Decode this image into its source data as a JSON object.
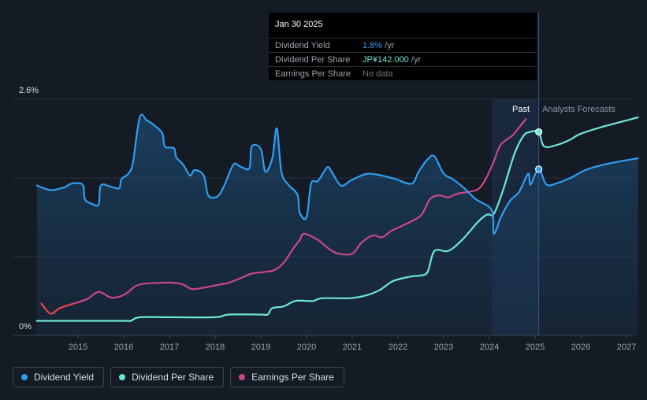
{
  "tooltip": {
    "date": "Jan 30 2025",
    "rows": [
      {
        "label": "Dividend Yield",
        "value": "1.8%",
        "unit": " /yr",
        "color": "#2f9ef0"
      },
      {
        "label": "Dividend Per Share",
        "value": "JP¥142.000",
        "unit": " /yr",
        "color": "#6ee7d4"
      },
      {
        "label": "Earnings Per Share",
        "value": "No data",
        "unit": "",
        "color": "#6b7280"
      }
    ]
  },
  "chart_data": {
    "type": "line",
    "y_max_label": "2.6%",
    "y_min_label": "0%",
    "x_ticks": [
      "2015",
      "2016",
      "2017",
      "2018",
      "2019",
      "2020",
      "2021",
      "2022",
      "2023",
      "2024",
      "2025",
      "2026",
      "2027"
    ],
    "past_label": "Past",
    "forecast_label": "Analysts Forecasts",
    "series": [
      {
        "name": "Dividend Yield",
        "unit": "%",
        "color": "#2f9ef0",
        "points": [
          [
            2014.1,
            1.65
          ],
          [
            2014.4,
            1.6
          ],
          [
            2014.7,
            1.63
          ],
          [
            2014.85,
            1.67
          ],
          [
            2015.1,
            1.66
          ],
          [
            2015.15,
            1.5
          ],
          [
            2015.3,
            1.45
          ],
          [
            2015.45,
            1.44
          ],
          [
            2015.5,
            1.65
          ],
          [
            2015.7,
            1.64
          ],
          [
            2015.9,
            1.62
          ],
          [
            2015.95,
            1.72
          ],
          [
            2016.1,
            1.78
          ],
          [
            2016.2,
            1.9
          ],
          [
            2016.35,
            2.4
          ],
          [
            2016.5,
            2.37
          ],
          [
            2016.7,
            2.3
          ],
          [
            2016.85,
            2.22
          ],
          [
            2016.9,
            2.08
          ],
          [
            2017.1,
            2.06
          ],
          [
            2017.15,
            1.96
          ],
          [
            2017.3,
            1.88
          ],
          [
            2017.45,
            1.76
          ],
          [
            2017.55,
            1.82
          ],
          [
            2017.75,
            1.76
          ],
          [
            2017.85,
            1.54
          ],
          [
            2018.05,
            1.53
          ],
          [
            2018.2,
            1.65
          ],
          [
            2018.4,
            1.88
          ],
          [
            2018.55,
            1.86
          ],
          [
            2018.75,
            1.84
          ],
          [
            2018.8,
            2.08
          ],
          [
            2019.0,
            2.05
          ],
          [
            2019.1,
            1.8
          ],
          [
            2019.25,
            1.95
          ],
          [
            2019.35,
            2.28
          ],
          [
            2019.45,
            1.8
          ],
          [
            2019.6,
            1.66
          ],
          [
            2019.8,
            1.55
          ],
          [
            2019.85,
            1.35
          ],
          [
            2020.0,
            1.3
          ],
          [
            2020.1,
            1.67
          ],
          [
            2020.25,
            1.7
          ],
          [
            2020.45,
            1.85
          ],
          [
            2020.55,
            1.8
          ],
          [
            2020.75,
            1.65
          ],
          [
            2020.95,
            1.7
          ],
          [
            2021.15,
            1.75
          ],
          [
            2021.35,
            1.78
          ],
          [
            2021.65,
            1.76
          ],
          [
            2021.95,
            1.72
          ],
          [
            2022.3,
            1.67
          ],
          [
            2022.45,
            1.8
          ],
          [
            2022.65,
            1.94
          ],
          [
            2022.8,
            1.97
          ],
          [
            2023.0,
            1.78
          ],
          [
            2023.2,
            1.72
          ],
          [
            2023.45,
            1.62
          ],
          [
            2023.7,
            1.5
          ],
          [
            2024.05,
            1.38
          ],
          [
            2024.1,
            1.12
          ],
          [
            2024.25,
            1.3
          ],
          [
            2024.45,
            1.48
          ],
          [
            2024.65,
            1.58
          ],
          [
            2024.85,
            1.78
          ],
          [
            2024.9,
            1.66
          ],
          [
            2025.08,
            1.83
          ],
          [
            2025.25,
            1.66
          ],
          [
            2025.5,
            1.68
          ],
          [
            2025.8,
            1.74
          ],
          [
            2026.1,
            1.82
          ],
          [
            2026.5,
            1.88
          ],
          [
            2026.9,
            1.92
          ],
          [
            2027.25,
            1.95
          ]
        ]
      },
      {
        "name": "Dividend Per Share",
        "unit": "%",
        "color": "#6ee7d4",
        "points": [
          [
            2014.1,
            0.16
          ],
          [
            2015.0,
            0.16
          ],
          [
            2016.0,
            0.16
          ],
          [
            2016.15,
            0.16
          ],
          [
            2016.35,
            0.2
          ],
          [
            2017.0,
            0.2
          ],
          [
            2018.0,
            0.2
          ],
          [
            2018.3,
            0.23
          ],
          [
            2019.0,
            0.23
          ],
          [
            2019.15,
            0.23
          ],
          [
            2019.25,
            0.3
          ],
          [
            2019.5,
            0.32
          ],
          [
            2019.75,
            0.38
          ],
          [
            2020.0,
            0.38
          ],
          [
            2020.15,
            0.38
          ],
          [
            2020.35,
            0.41
          ],
          [
            2020.95,
            0.41
          ],
          [
            2021.3,
            0.44
          ],
          [
            2021.6,
            0.5
          ],
          [
            2021.9,
            0.6
          ],
          [
            2022.3,
            0.65
          ],
          [
            2022.5,
            0.66
          ],
          [
            2022.65,
            0.7
          ],
          [
            2022.8,
            0.93
          ],
          [
            2023.1,
            0.93
          ],
          [
            2023.4,
            1.05
          ],
          [
            2023.75,
            1.25
          ],
          [
            2023.95,
            1.33
          ],
          [
            2024.1,
            1.34
          ],
          [
            2024.3,
            1.6
          ],
          [
            2024.55,
            2.0
          ],
          [
            2024.75,
            2.2
          ],
          [
            2024.9,
            2.24
          ],
          [
            2025.08,
            2.24
          ],
          [
            2025.2,
            2.08
          ],
          [
            2025.5,
            2.1
          ],
          [
            2025.75,
            2.15
          ],
          [
            2026.0,
            2.22
          ],
          [
            2026.5,
            2.3
          ],
          [
            2027.25,
            2.4
          ]
        ]
      },
      {
        "name": "Earnings Per Share",
        "unit": "%",
        "color": "#c9478a",
        "points": [
          [
            2014.2,
            0.35
          ],
          [
            2014.4,
            0.24
          ],
          [
            2014.6,
            0.3
          ],
          [
            2014.9,
            0.35
          ],
          [
            2015.2,
            0.4
          ],
          [
            2015.45,
            0.48
          ],
          [
            2015.7,
            0.42
          ],
          [
            2015.85,
            0.42
          ],
          [
            2016.05,
            0.46
          ],
          [
            2016.25,
            0.54
          ],
          [
            2016.45,
            0.57
          ],
          [
            2016.8,
            0.58
          ],
          [
            2017.1,
            0.58
          ],
          [
            2017.3,
            0.56
          ],
          [
            2017.5,
            0.51
          ],
          [
            2017.8,
            0.53
          ],
          [
            2018.1,
            0.56
          ],
          [
            2018.3,
            0.58
          ],
          [
            2018.6,
            0.64
          ],
          [
            2018.8,
            0.68
          ],
          [
            2019.1,
            0.7
          ],
          [
            2019.3,
            0.72
          ],
          [
            2019.5,
            0.8
          ],
          [
            2019.7,
            0.95
          ],
          [
            2019.85,
            1.05
          ],
          [
            2019.95,
            1.12
          ],
          [
            2020.25,
            1.05
          ],
          [
            2020.5,
            0.95
          ],
          [
            2020.7,
            0.9
          ],
          [
            2021.0,
            0.9
          ],
          [
            2021.2,
            1.02
          ],
          [
            2021.45,
            1.1
          ],
          [
            2021.65,
            1.08
          ],
          [
            2021.85,
            1.15
          ],
          [
            2022.15,
            1.22
          ],
          [
            2022.5,
            1.32
          ],
          [
            2022.7,
            1.5
          ],
          [
            2022.9,
            1.54
          ],
          [
            2023.1,
            1.52
          ],
          [
            2023.3,
            1.56
          ],
          [
            2023.65,
            1.59
          ],
          [
            2023.8,
            1.63
          ],
          [
            2023.95,
            1.75
          ],
          [
            2024.1,
            1.92
          ],
          [
            2024.25,
            2.1
          ],
          [
            2024.5,
            2.2
          ],
          [
            2024.7,
            2.32
          ],
          [
            2024.8,
            2.38
          ]
        ]
      }
    ],
    "ylim": [
      0,
      2.6
    ],
    "xlim": [
      2014.0,
      2027.25
    ],
    "divider_x": 2025.08,
    "shade_start_x": 2024.05,
    "markers": [
      [
        2025.08,
        1.83,
        "#2f9ef0"
      ],
      [
        2025.08,
        2.24,
        "#6ee7d4"
      ]
    ]
  },
  "legend": [
    {
      "label": "Dividend Yield",
      "color": "#2f9ef0"
    },
    {
      "label": "Dividend Per Share",
      "color": "#6ee7d4"
    },
    {
      "label": "Earnings Per Share",
      "color": "#c9478a"
    }
  ]
}
